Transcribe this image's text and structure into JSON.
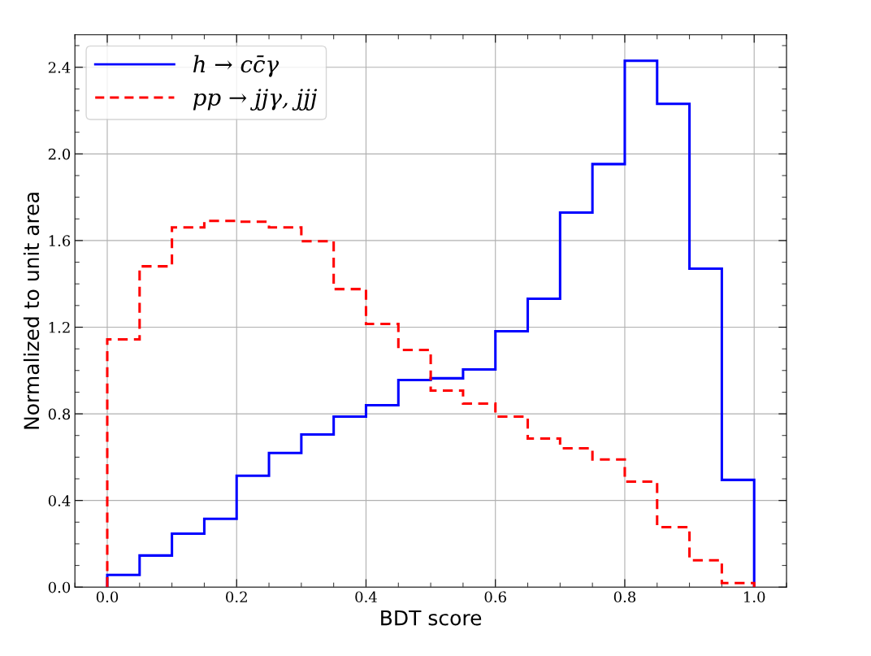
{
  "chart_data": {
    "type": "histogram",
    "xlabel": "BDT score",
    "ylabel": "Normalized to unit area",
    "bins": [
      0.0,
      0.05,
      0.1,
      0.15,
      0.2,
      0.25,
      0.3,
      0.35,
      0.4,
      0.45,
      0.5,
      0.55,
      0.6,
      0.65,
      0.7,
      0.75,
      0.8,
      0.85,
      0.9,
      0.95,
      1.0
    ],
    "series": [
      {
        "name": "h → cc̄γ",
        "color": "#0000ff",
        "line_style": "solid",
        "values": [
          0.056,
          0.146,
          0.247,
          0.315,
          0.514,
          0.619,
          0.705,
          0.787,
          0.84,
          0.956,
          0.964,
          1.005,
          1.181,
          1.331,
          1.729,
          1.953,
          2.43,
          2.231,
          1.47,
          0.495
        ]
      },
      {
        "name": "pp → jjγ, jjj",
        "color": "#ff0000",
        "line_style": "dashed",
        "values": [
          1.144,
          1.481,
          1.661,
          1.691,
          1.687,
          1.661,
          1.597,
          1.376,
          1.215,
          1.095,
          0.907,
          0.847,
          0.787,
          0.686,
          0.641,
          0.589,
          0.487,
          0.277,
          0.124,
          0.019
        ]
      }
    ],
    "xlim": [
      -0.05,
      1.05
    ],
    "ylim": [
      0,
      2.55
    ],
    "xticks": [
      {
        "value": 0,
        "label": "0.0"
      },
      0.2,
      0.4,
      0.6,
      0.8,
      {
        "value": 1,
        "label": "1.0"
      }
    ],
    "yticks": [
      {
        "value": 0,
        "label": "0.0"
      },
      0.4,
      0.8,
      1.2,
      1.6,
      {
        "value": 2,
        "label": "2.0"
      },
      2.4
    ],
    "grid": true,
    "legend": "top left"
  }
}
